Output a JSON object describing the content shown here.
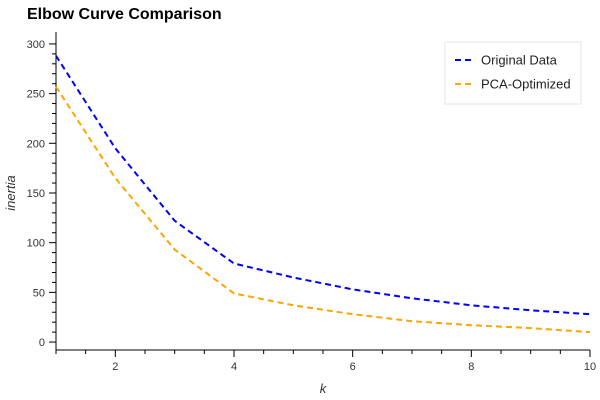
{
  "chart_data": {
    "type": "line",
    "title": "Elbow Curve Comparison",
    "xlabel": "k",
    "ylabel": "inertia",
    "xlim": [
      1,
      10
    ],
    "ylim": [
      -8,
      312
    ],
    "x_ticks": [
      2,
      4,
      6,
      8,
      10
    ],
    "y_ticks": [
      0,
      50,
      100,
      150,
      200,
      250,
      300
    ],
    "x_minor_step": 0.5,
    "y_minor_step": 10,
    "grid": false,
    "legend_position": "top-right",
    "line_style": "dashed",
    "series": [
      {
        "name": "Original Data",
        "color": "#0000ff",
        "x": [
          1,
          2,
          3,
          4,
          5,
          6,
          7,
          8,
          9,
          10
        ],
        "y": [
          288,
          195,
          122,
          79,
          65,
          53,
          44,
          37,
          32,
          28
        ]
      },
      {
        "name": "PCA-Optimized",
        "color": "#ffa500",
        "x": [
          1,
          2,
          3,
          4,
          5,
          6,
          7,
          8,
          9,
          10
        ],
        "y": [
          257,
          165,
          93,
          49,
          37,
          28,
          21,
          17,
          14,
          10
        ]
      }
    ]
  }
}
